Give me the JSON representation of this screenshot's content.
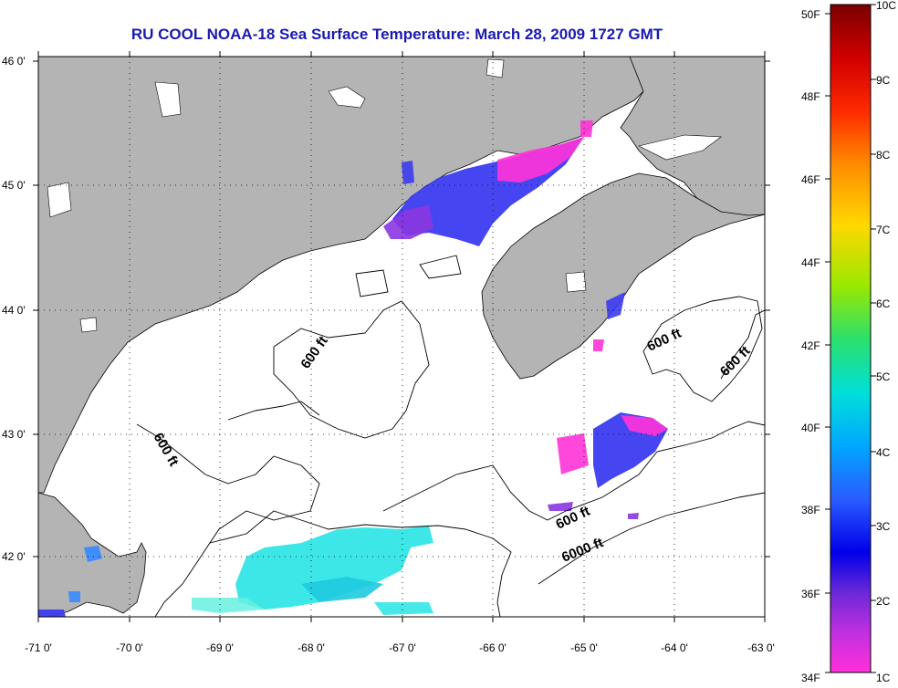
{
  "title": "RU COOL  NOAA-18  Sea Surface Temperature:  March 28, 2009 1727 GMT",
  "lat_labels": [
    "46 0'",
    "45 0'",
    "44 0'",
    "43 0'",
    "42 0'"
  ],
  "lon_labels": [
    "-71 0'",
    "-70 0'",
    "-69 0'",
    "-68 0'",
    "-67 0'",
    "-66 0'",
    "-65 0'",
    "-64 0'",
    "-63 0'"
  ],
  "isobaths": {
    "a": "600 ft",
    "b": "600 ft",
    "c": "600 ft",
    "d": "600 ft",
    "e": "600 ft",
    "f": "6000 ft"
  },
  "colorbar": {
    "fahrenheit": [
      "50F",
      "48F",
      "46F",
      "44F",
      "42F",
      "40F",
      "38F",
      "36F",
      "34F"
    ],
    "celsius": [
      "10C",
      "9C",
      "8C",
      "7C",
      "6C",
      "5C",
      "4C",
      "3C",
      "2C",
      "1C"
    ]
  },
  "colors": {
    "title": "#1a1ab0",
    "land": "#b4b4b4",
    "water": "#ffffff"
  }
}
